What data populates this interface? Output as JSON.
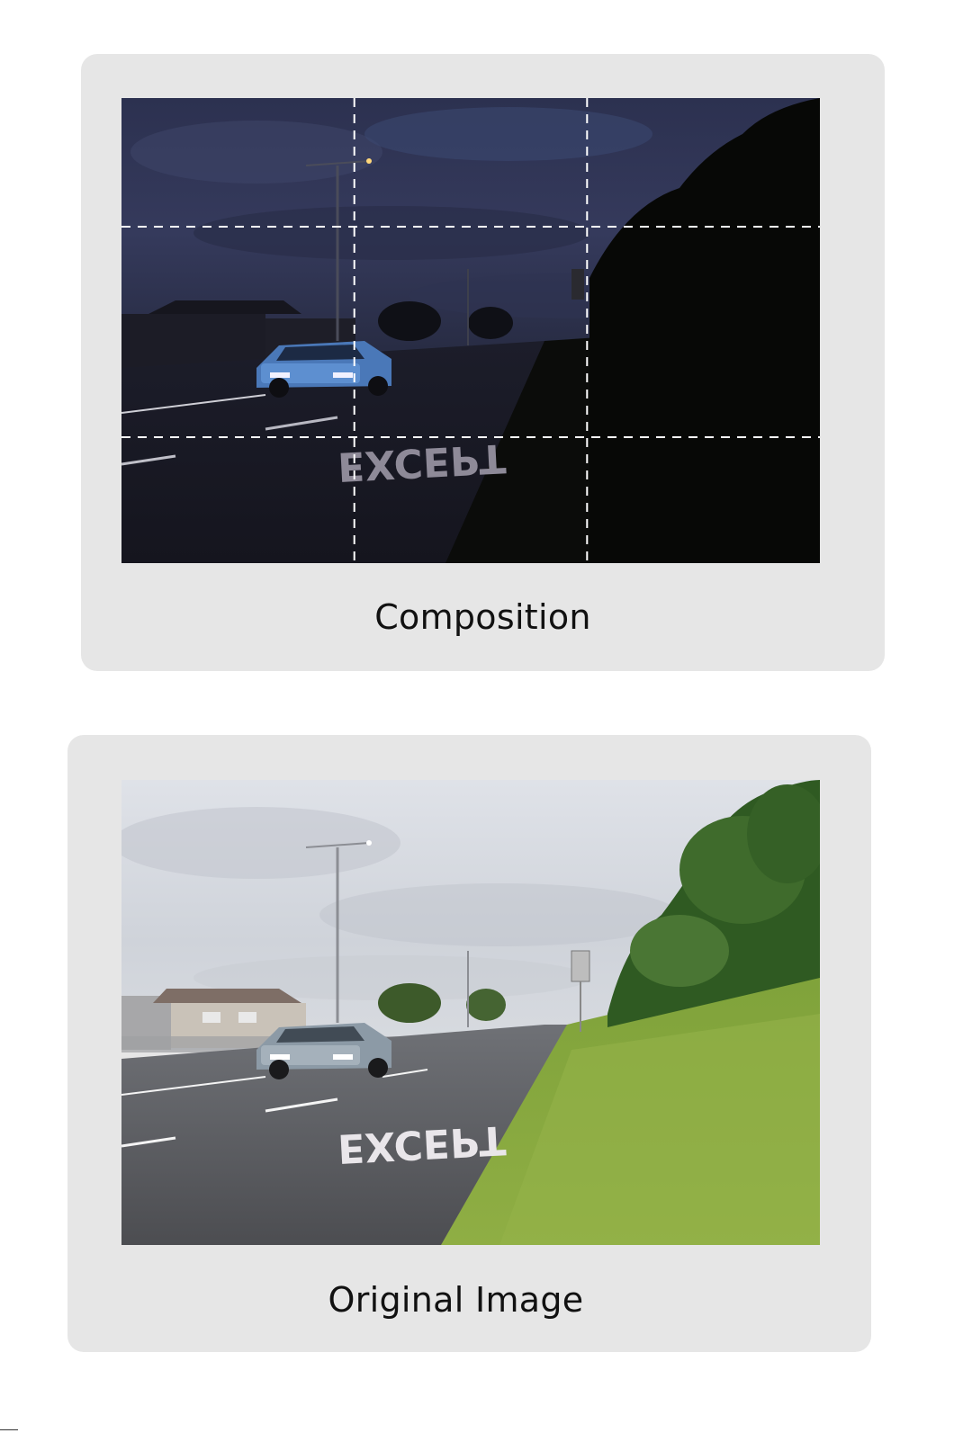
{
  "composition": {
    "caption": "Composition",
    "image_icon": "night-road-photo",
    "grid": "rule-of-thirds",
    "road_text": "EXCEPT"
  },
  "original": {
    "caption": "Original Image",
    "image_icon": "day-road-photo",
    "road_text": "EXCEPT"
  },
  "colors": {
    "card_background": "#e6e6e6",
    "caption_text": "#111111"
  }
}
